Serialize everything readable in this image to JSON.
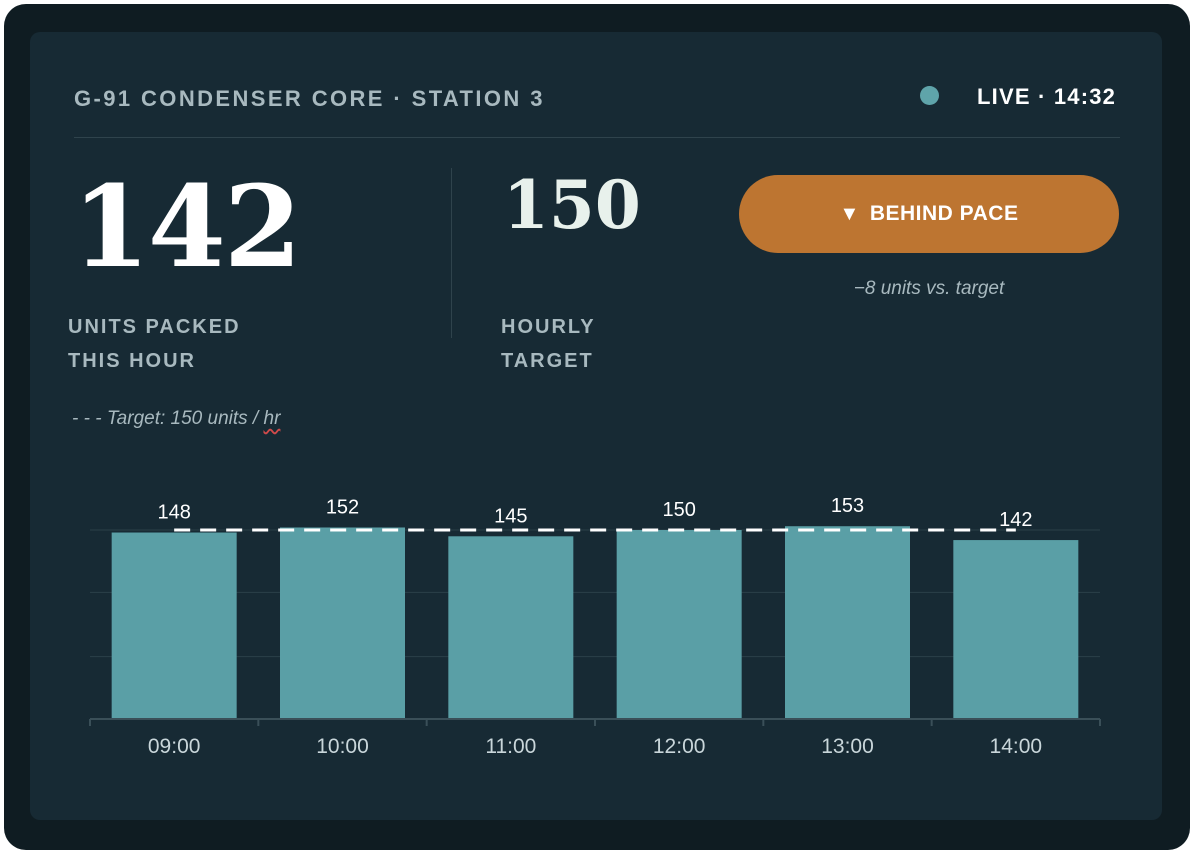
{
  "header": {
    "station_title": "G-91 CONDENSER CORE · STATION 3",
    "live_status": "LIVE · 14:32"
  },
  "kpi": {
    "units_value": "142",
    "units_label_line1": "UNITS PACKED",
    "units_label_line2": "THIS HOUR",
    "target_value": "150",
    "target_label_line1": "HOURLY",
    "target_label_line2": "TARGET"
  },
  "status": {
    "icon": "triangle-down-icon",
    "label": "BEHIND PACE",
    "color": "#bd7531",
    "delta_text": "−8 units vs. target"
  },
  "legend": {
    "prefix": "- - - Target: 150 units / ",
    "unit_word": "hr"
  },
  "colors": {
    "bar": "#5a9fa6",
    "target_line": "#ffffff",
    "background": "#172a34",
    "live_dot": "#5fa4aa"
  },
  "chart_data": {
    "type": "bar",
    "categories": [
      "09:00",
      "10:00",
      "11:00",
      "12:00",
      "13:00",
      "14:00"
    ],
    "values": [
      148,
      152,
      145,
      150,
      153,
      142
    ],
    "target": 150,
    "ylim": [
      0,
      150
    ],
    "grid": true
  }
}
